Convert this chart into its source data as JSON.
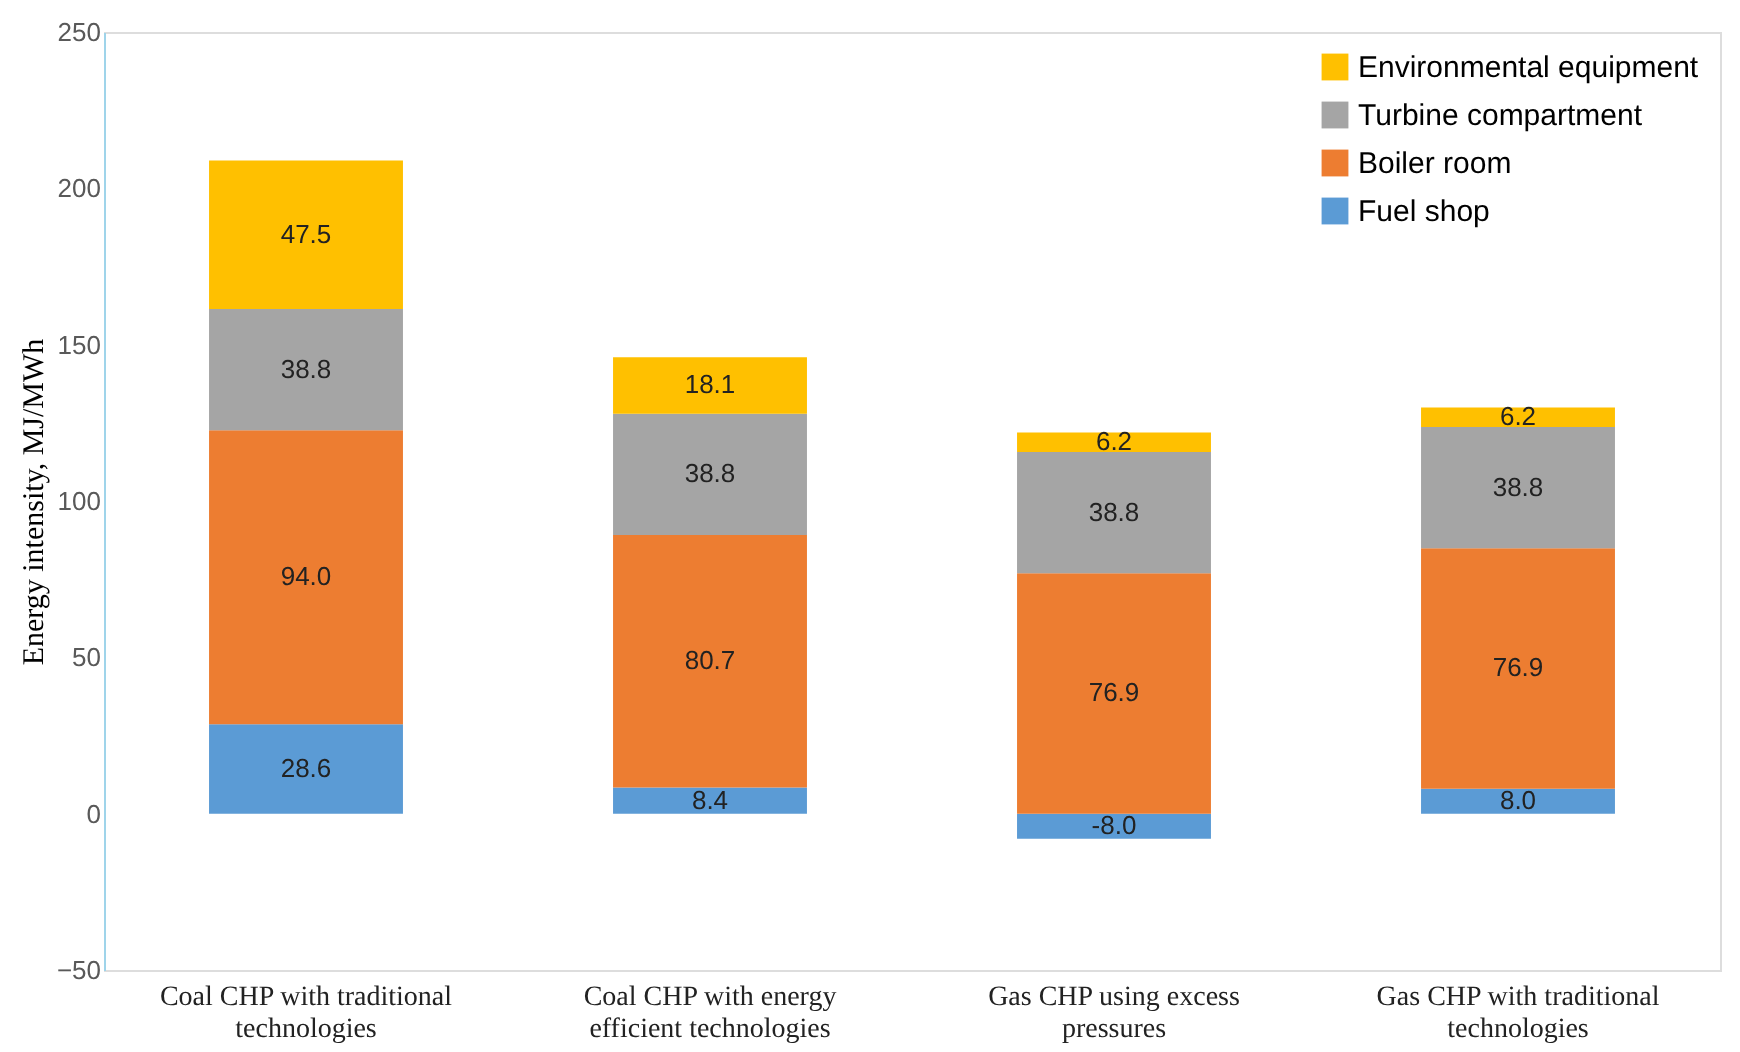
{
  "chart_data": {
    "type": "bar",
    "stacked": true,
    "ylabel": "Energy intensity, MJ/MWh",
    "categories": [
      "Coal CHP with traditional technologies",
      "Coal CHP with energy efficient technologies",
      "Gas CHP using excess pressures",
      "Gas CHP with traditional technologies"
    ],
    "series": [
      {
        "name": "Fuel shop",
        "color": "#5b9bd5",
        "values": [
          28.6,
          8.4,
          -8.0,
          8.0
        ],
        "value_labels": [
          "28.6",
          "8.4",
          "-8.0",
          "8.0"
        ]
      },
      {
        "name": "Boiler room",
        "color": "#ed7d31",
        "values": [
          94.0,
          80.7,
          76.9,
          76.9
        ],
        "value_labels": [
          "94.0",
          "80.7",
          "76.9",
          "76.9"
        ]
      },
      {
        "name": "Turbine compartment",
        "color": "#a5a5a5",
        "values": [
          38.8,
          38.8,
          38.8,
          38.8
        ],
        "value_labels": [
          "38.8",
          "38.8",
          "38.8",
          "38.8"
        ]
      },
      {
        "name": "Environmental equipment",
        "color": "#ffc000",
        "values": [
          47.5,
          18.1,
          6.2,
          6.2
        ],
        "value_labels": [
          "47.5",
          "18.1",
          "6.2",
          "6.2"
        ]
      }
    ],
    "ylim": [
      -50,
      250
    ],
    "yticks": [
      -50,
      0,
      50,
      100,
      150,
      200,
      250
    ],
    "grid": false,
    "legend": "top right"
  }
}
